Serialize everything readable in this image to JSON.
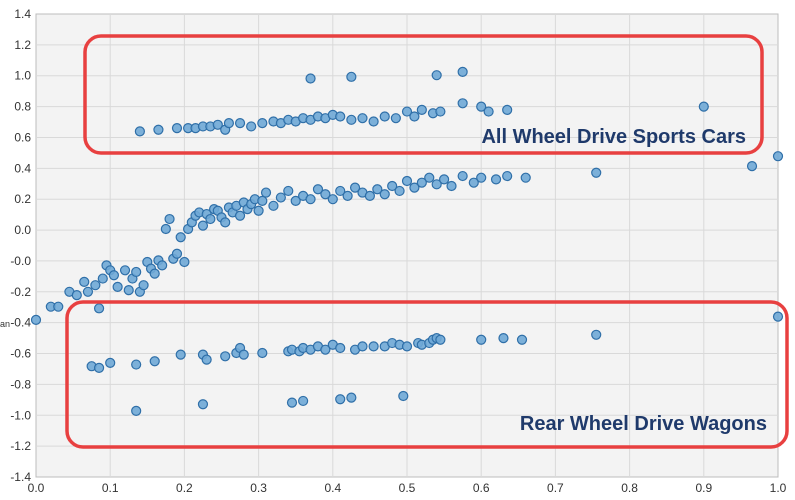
{
  "chart_data": {
    "type": "scatter",
    "title": "",
    "xlabel": "",
    "ylabel": "an",
    "xlim": [
      0.0,
      1.0
    ],
    "ylim": [
      -1.4,
      1.4
    ],
    "x_ticks": [
      "0.0",
      "0.1",
      "0.2",
      "0.3",
      "0.4",
      "0.5",
      "0.6",
      "0.7",
      "0.8",
      "0.9",
      "1.0"
    ],
    "y_ticks": [
      "1.4",
      "1.2",
      "1.0",
      "0.8",
      "0.6",
      "0.4",
      "0.2",
      "0.0",
      "-0.0",
      "-0.2",
      "-0.4",
      "-0.6",
      "-0.8",
      "-1.0",
      "-1.2",
      "-1.4"
    ],
    "grid": true,
    "point_color": "#6fa8d6",
    "point_stroke": "#2f6fa8",
    "annotations": [
      {
        "label": "All Wheel Drive Sports Cars",
        "color": "#e84040"
      },
      {
        "label": "Rear Wheel Drive Wagons",
        "color": "#e84040"
      }
    ],
    "series": [
      {
        "values": [
          {
            "x": 0.37,
            "y": 1.01
          },
          {
            "x": 0.425,
            "y": 1.02
          },
          {
            "x": 0.54,
            "y": 1.03
          },
          {
            "x": 0.575,
            "y": 1.05
          },
          {
            "x": 0.14,
            "y": 0.69
          },
          {
            "x": 0.165,
            "y": 0.7
          },
          {
            "x": 0.19,
            "y": 0.71
          },
          {
            "x": 0.205,
            "y": 0.71
          },
          {
            "x": 0.215,
            "y": 0.71
          },
          {
            "x": 0.225,
            "y": 0.72
          },
          {
            "x": 0.235,
            "y": 0.72
          },
          {
            "x": 0.245,
            "y": 0.73
          },
          {
            "x": 0.255,
            "y": 0.7
          },
          {
            "x": 0.26,
            "y": 0.74
          },
          {
            "x": 0.275,
            "y": 0.74
          },
          {
            "x": 0.29,
            "y": 0.72
          },
          {
            "x": 0.305,
            "y": 0.74
          },
          {
            "x": 0.32,
            "y": 0.75
          },
          {
            "x": 0.33,
            "y": 0.74
          },
          {
            "x": 0.34,
            "y": 0.76
          },
          {
            "x": 0.35,
            "y": 0.75
          },
          {
            "x": 0.36,
            "y": 0.77
          },
          {
            "x": 0.37,
            "y": 0.76
          },
          {
            "x": 0.38,
            "y": 0.78
          },
          {
            "x": 0.39,
            "y": 0.77
          },
          {
            "x": 0.4,
            "y": 0.79
          },
          {
            "x": 0.41,
            "y": 0.78
          },
          {
            "x": 0.425,
            "y": 0.76
          },
          {
            "x": 0.44,
            "y": 0.77
          },
          {
            "x": 0.455,
            "y": 0.75
          },
          {
            "x": 0.47,
            "y": 0.78
          },
          {
            "x": 0.485,
            "y": 0.77
          },
          {
            "x": 0.5,
            "y": 0.81
          },
          {
            "x": 0.51,
            "y": 0.78
          },
          {
            "x": 0.52,
            "y": 0.82
          },
          {
            "x": 0.535,
            "y": 0.8
          },
          {
            "x": 0.545,
            "y": 0.81
          },
          {
            "x": 0.575,
            "y": 0.86
          },
          {
            "x": 0.6,
            "y": 0.84
          },
          {
            "x": 0.61,
            "y": 0.81
          },
          {
            "x": 0.635,
            "y": 0.82
          },
          {
            "x": 0.9,
            "y": 0.84
          },
          {
            "x": 0.02,
            "y": -0.37
          },
          {
            "x": 0.03,
            "y": -0.37
          },
          {
            "x": 0.045,
            "y": -0.28
          },
          {
            "x": 0.055,
            "y": -0.3
          },
          {
            "x": 0.065,
            "y": -0.22
          },
          {
            "x": 0.07,
            "y": -0.28
          },
          {
            "x": 0.08,
            "y": -0.24
          },
          {
            "x": 0.085,
            "y": -0.38
          },
          {
            "x": 0.09,
            "y": -0.2
          },
          {
            "x": 0.095,
            "y": -0.12
          },
          {
            "x": 0.1,
            "y": -0.15
          },
          {
            "x": 0.105,
            "y": -0.18
          },
          {
            "x": 0.11,
            "y": -0.25
          },
          {
            "x": 0.12,
            "y": -0.15
          },
          {
            "x": 0.125,
            "y": -0.27
          },
          {
            "x": 0.13,
            "y": -0.2
          },
          {
            "x": 0.135,
            "y": -0.16
          },
          {
            "x": 0.14,
            "y": -0.28
          },
          {
            "x": 0.145,
            "y": -0.24
          },
          {
            "x": 0.15,
            "y": -0.1
          },
          {
            "x": 0.155,
            "y": -0.14
          },
          {
            "x": 0.16,
            "y": -0.17
          },
          {
            "x": 0.165,
            "y": -0.09
          },
          {
            "x": 0.17,
            "y": -0.12
          },
          {
            "x": 0.175,
            "y": 0.1
          },
          {
            "x": 0.18,
            "y": 0.16
          },
          {
            "x": 0.185,
            "y": -0.08
          },
          {
            "x": 0.19,
            "y": -0.05
          },
          {
            "x": 0.195,
            "y": 0.05
          },
          {
            "x": 0.2,
            "y": -0.1
          },
          {
            "x": 0.205,
            "y": 0.1
          },
          {
            "x": 0.21,
            "y": 0.14
          },
          {
            "x": 0.215,
            "y": 0.18
          },
          {
            "x": 0.22,
            "y": 0.2
          },
          {
            "x": 0.225,
            "y": 0.12
          },
          {
            "x": 0.23,
            "y": 0.19
          },
          {
            "x": 0.235,
            "y": 0.16
          },
          {
            "x": 0.24,
            "y": 0.22
          },
          {
            "x": 0.245,
            "y": 0.21
          },
          {
            "x": 0.25,
            "y": 0.17
          },
          {
            "x": 0.255,
            "y": 0.14
          },
          {
            "x": 0.26,
            "y": 0.23
          },
          {
            "x": 0.265,
            "y": 0.2
          },
          {
            "x": 0.27,
            "y": 0.24
          },
          {
            "x": 0.275,
            "y": 0.18
          },
          {
            "x": 0.28,
            "y": 0.26
          },
          {
            "x": 0.285,
            "y": 0.22
          },
          {
            "x": 0.29,
            "y": 0.25
          },
          {
            "x": 0.295,
            "y": 0.28
          },
          {
            "x": 0.3,
            "y": 0.21
          },
          {
            "x": 0.305,
            "y": 0.27
          },
          {
            "x": 0.31,
            "y": 0.32
          },
          {
            "x": 0.32,
            "y": 0.24
          },
          {
            "x": 0.33,
            "y": 0.29
          },
          {
            "x": 0.34,
            "y": 0.33
          },
          {
            "x": 0.35,
            "y": 0.27
          },
          {
            "x": 0.36,
            "y": 0.3
          },
          {
            "x": 0.37,
            "y": 0.28
          },
          {
            "x": 0.38,
            "y": 0.34
          },
          {
            "x": 0.39,
            "y": 0.31
          },
          {
            "x": 0.4,
            "y": 0.28
          },
          {
            "x": 0.41,
            "y": 0.33
          },
          {
            "x": 0.42,
            "y": 0.3
          },
          {
            "x": 0.43,
            "y": 0.35
          },
          {
            "x": 0.44,
            "y": 0.32
          },
          {
            "x": 0.45,
            "y": 0.3
          },
          {
            "x": 0.46,
            "y": 0.34
          },
          {
            "x": 0.47,
            "y": 0.31
          },
          {
            "x": 0.48,
            "y": 0.36
          },
          {
            "x": 0.49,
            "y": 0.33
          },
          {
            "x": 0.5,
            "y": 0.39
          },
          {
            "x": 0.51,
            "y": 0.35
          },
          {
            "x": 0.52,
            "y": 0.38
          },
          {
            "x": 0.53,
            "y": 0.41
          },
          {
            "x": 0.54,
            "y": 0.37
          },
          {
            "x": 0.55,
            "y": 0.4
          },
          {
            "x": 0.56,
            "y": 0.36
          },
          {
            "x": 0.575,
            "y": 0.42
          },
          {
            "x": 0.59,
            "y": 0.38
          },
          {
            "x": 0.6,
            "y": 0.41
          },
          {
            "x": 0.62,
            "y": 0.4
          },
          {
            "x": 0.635,
            "y": 0.42
          },
          {
            "x": 0.66,
            "y": 0.41
          },
          {
            "x": 0.755,
            "y": 0.44
          },
          {
            "x": 0.965,
            "y": 0.48
          },
          {
            "x": 1.0,
            "y": 0.54
          },
          {
            "x": 0.0,
            "y": -0.45
          },
          {
            "x": 1.0,
            "y": -0.43
          },
          {
            "x": 0.075,
            "y": -0.73
          },
          {
            "x": 0.085,
            "y": -0.74
          },
          {
            "x": 0.1,
            "y": -0.71
          },
          {
            "x": 0.135,
            "y": -0.72
          },
          {
            "x": 0.135,
            "y": -1.0
          },
          {
            "x": 0.16,
            "y": -0.7
          },
          {
            "x": 0.195,
            "y": -0.66
          },
          {
            "x": 0.225,
            "y": -0.66
          },
          {
            "x": 0.23,
            "y": -0.69
          },
          {
            "x": 0.225,
            "y": -0.96
          },
          {
            "x": 0.255,
            "y": -0.67
          },
          {
            "x": 0.27,
            "y": -0.65
          },
          {
            "x": 0.275,
            "y": -0.62
          },
          {
            "x": 0.28,
            "y": -0.66
          },
          {
            "x": 0.305,
            "y": -0.65
          },
          {
            "x": 0.34,
            "y": -0.64
          },
          {
            "x": 0.345,
            "y": -0.63
          },
          {
            "x": 0.355,
            "y": -0.64
          },
          {
            "x": 0.36,
            "y": -0.62
          },
          {
            "x": 0.37,
            "y": -0.63
          },
          {
            "x": 0.38,
            "y": -0.61
          },
          {
            "x": 0.39,
            "y": -0.63
          },
          {
            "x": 0.4,
            "y": -0.6
          },
          {
            "x": 0.41,
            "y": -0.62
          },
          {
            "x": 0.43,
            "y": -0.63
          },
          {
            "x": 0.44,
            "y": -0.61
          },
          {
            "x": 0.455,
            "y": -0.61
          },
          {
            "x": 0.47,
            "y": -0.61
          },
          {
            "x": 0.48,
            "y": -0.59
          },
          {
            "x": 0.49,
            "y": -0.6
          },
          {
            "x": 0.5,
            "y": -0.61
          },
          {
            "x": 0.515,
            "y": -0.59
          },
          {
            "x": 0.52,
            "y": -0.6
          },
          {
            "x": 0.53,
            "y": -0.59
          },
          {
            "x": 0.535,
            "y": -0.57
          },
          {
            "x": 0.54,
            "y": -0.56
          },
          {
            "x": 0.545,
            "y": -0.57
          },
          {
            "x": 0.6,
            "y": -0.57
          },
          {
            "x": 0.63,
            "y": -0.56
          },
          {
            "x": 0.655,
            "y": -0.57
          },
          {
            "x": 0.755,
            "y": -0.54
          },
          {
            "x": 0.345,
            "y": -0.95
          },
          {
            "x": 0.36,
            "y": -0.94
          },
          {
            "x": 0.41,
            "y": -0.93
          },
          {
            "x": 0.425,
            "y": -0.92
          },
          {
            "x": 0.495,
            "y": -0.91
          }
        ]
      }
    ]
  }
}
